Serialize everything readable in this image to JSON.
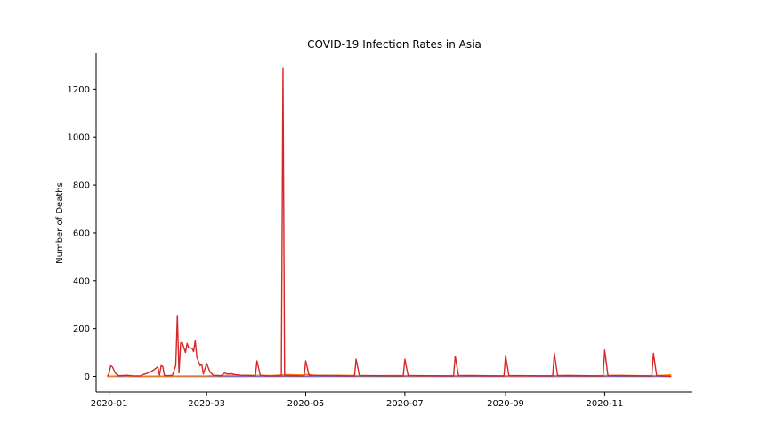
{
  "chart_data": {
    "type": "line",
    "title": "COVID-19 Infection Rates in Asia",
    "xlabel": "",
    "ylabel": "Number of Deaths",
    "xlim": [
      "2019-12-24",
      "2020-12-25"
    ],
    "ylim": [
      -65,
      1350
    ],
    "x_ticks": [
      "2020-01-01",
      "2020-03-01",
      "2020-05-01",
      "2020-07-01",
      "2020-09-01",
      "2020-11-01"
    ],
    "x_tick_labels": [
      "2020-01",
      "2020-03",
      "2020-05",
      "2020-07",
      "2020-09",
      "2020-11"
    ],
    "y_ticks": [
      0,
      200,
      400,
      600,
      800,
      1000,
      1200
    ],
    "y_tick_labels": [
      "0",
      "200",
      "400",
      "600",
      "800",
      "1000",
      "1200"
    ],
    "grid": false,
    "legend": "none",
    "series": [
      {
        "color": "#1f77b4",
        "points": [
          [
            "2019-12-31",
            0
          ],
          [
            "2020-12-12",
            0
          ]
        ]
      },
      {
        "color": "#9467bd",
        "points": [
          [
            "2019-12-31",
            1
          ],
          [
            "2020-03-15",
            1
          ],
          [
            "2020-06-01",
            2
          ],
          [
            "2020-09-01",
            1
          ],
          [
            "2020-12-12",
            2
          ]
        ]
      },
      {
        "color": "#ff7f0e",
        "points": [
          [
            "2019-12-31",
            0
          ],
          [
            "2020-01-10",
            3
          ],
          [
            "2020-01-15",
            1
          ],
          [
            "2020-03-01",
            2
          ],
          [
            "2020-03-20",
            5
          ],
          [
            "2020-04-10",
            4
          ],
          [
            "2020-04-20",
            8
          ],
          [
            "2020-04-28",
            6
          ],
          [
            "2020-05-01",
            9
          ],
          [
            "2020-05-08",
            4
          ],
          [
            "2020-05-20",
            5
          ],
          [
            "2020-06-10",
            3
          ],
          [
            "2020-06-25",
            4
          ],
          [
            "2020-07-15",
            2
          ],
          [
            "2020-08-10",
            4
          ],
          [
            "2020-08-25",
            3
          ],
          [
            "2020-09-15",
            2
          ],
          [
            "2020-10-10",
            4
          ],
          [
            "2020-10-25",
            3
          ],
          [
            "2020-11-10",
            5
          ],
          [
            "2020-11-25",
            3
          ],
          [
            "2020-12-05",
            4
          ],
          [
            "2020-12-12",
            7
          ]
        ]
      },
      {
        "color": "#d62728",
        "points": [
          [
            "2019-12-31",
            0
          ],
          [
            "2020-01-01",
            15
          ],
          [
            "2020-01-02",
            45
          ],
          [
            "2020-01-03",
            40
          ],
          [
            "2020-01-05",
            12
          ],
          [
            "2020-01-07",
            3
          ],
          [
            "2020-01-12",
            5
          ],
          [
            "2020-01-16",
            2
          ],
          [
            "2020-01-20",
            2
          ],
          [
            "2020-01-22",
            8
          ],
          [
            "2020-01-24",
            12
          ],
          [
            "2020-01-26",
            18
          ],
          [
            "2020-01-28",
            25
          ],
          [
            "2020-01-30",
            35
          ],
          [
            "2020-01-31",
            40
          ],
          [
            "2020-02-01",
            5
          ],
          [
            "2020-02-02",
            45
          ],
          [
            "2020-02-03",
            42
          ],
          [
            "2020-02-04",
            5
          ],
          [
            "2020-02-06",
            3
          ],
          [
            "2020-02-09",
            5
          ],
          [
            "2020-02-11",
            45
          ],
          [
            "2020-02-12",
            255
          ],
          [
            "2020-02-13",
            15
          ],
          [
            "2020-02-14",
            140
          ],
          [
            "2020-02-15",
            142
          ],
          [
            "2020-02-17",
            100
          ],
          [
            "2020-02-18",
            138
          ],
          [
            "2020-02-19",
            120
          ],
          [
            "2020-02-21",
            118
          ],
          [
            "2020-02-22",
            104
          ],
          [
            "2020-02-23",
            150
          ],
          [
            "2020-02-24",
            80
          ],
          [
            "2020-02-26",
            45
          ],
          [
            "2020-02-27",
            52
          ],
          [
            "2020-02-28",
            10
          ],
          [
            "2020-03-01",
            55
          ],
          [
            "2020-03-03",
            20
          ],
          [
            "2020-03-05",
            5
          ],
          [
            "2020-03-10",
            3
          ],
          [
            "2020-03-12",
            14
          ],
          [
            "2020-03-14",
            10
          ],
          [
            "2020-03-16",
            12
          ],
          [
            "2020-03-18",
            8
          ],
          [
            "2020-03-22",
            5
          ],
          [
            "2020-03-28",
            4
          ],
          [
            "2020-03-31",
            2
          ],
          [
            "2020-04-01",
            65
          ],
          [
            "2020-04-03",
            5
          ],
          [
            "2020-04-08",
            2
          ],
          [
            "2020-04-16",
            3
          ],
          [
            "2020-04-17",
            1290
          ],
          [
            "2020-04-18",
            4
          ],
          [
            "2020-04-30",
            2
          ],
          [
            "2020-05-01",
            65
          ],
          [
            "2020-05-03",
            5
          ],
          [
            "2020-05-31",
            2
          ],
          [
            "2020-06-01",
            72
          ],
          [
            "2020-06-03",
            4
          ],
          [
            "2020-06-30",
            2
          ],
          [
            "2020-07-01",
            72
          ],
          [
            "2020-07-03",
            4
          ],
          [
            "2020-07-31",
            2
          ],
          [
            "2020-08-01",
            85
          ],
          [
            "2020-08-03",
            4
          ],
          [
            "2020-08-31",
            2
          ],
          [
            "2020-09-01",
            88
          ],
          [
            "2020-09-03",
            4
          ],
          [
            "2020-09-30",
            2
          ],
          [
            "2020-10-01",
            97
          ],
          [
            "2020-10-03",
            4
          ],
          [
            "2020-10-31",
            2
          ],
          [
            "2020-11-01",
            110
          ],
          [
            "2020-11-03",
            4
          ],
          [
            "2020-11-30",
            2
          ],
          [
            "2020-12-01",
            97
          ],
          [
            "2020-12-03",
            4
          ],
          [
            "2020-12-12",
            0
          ]
        ]
      }
    ]
  }
}
